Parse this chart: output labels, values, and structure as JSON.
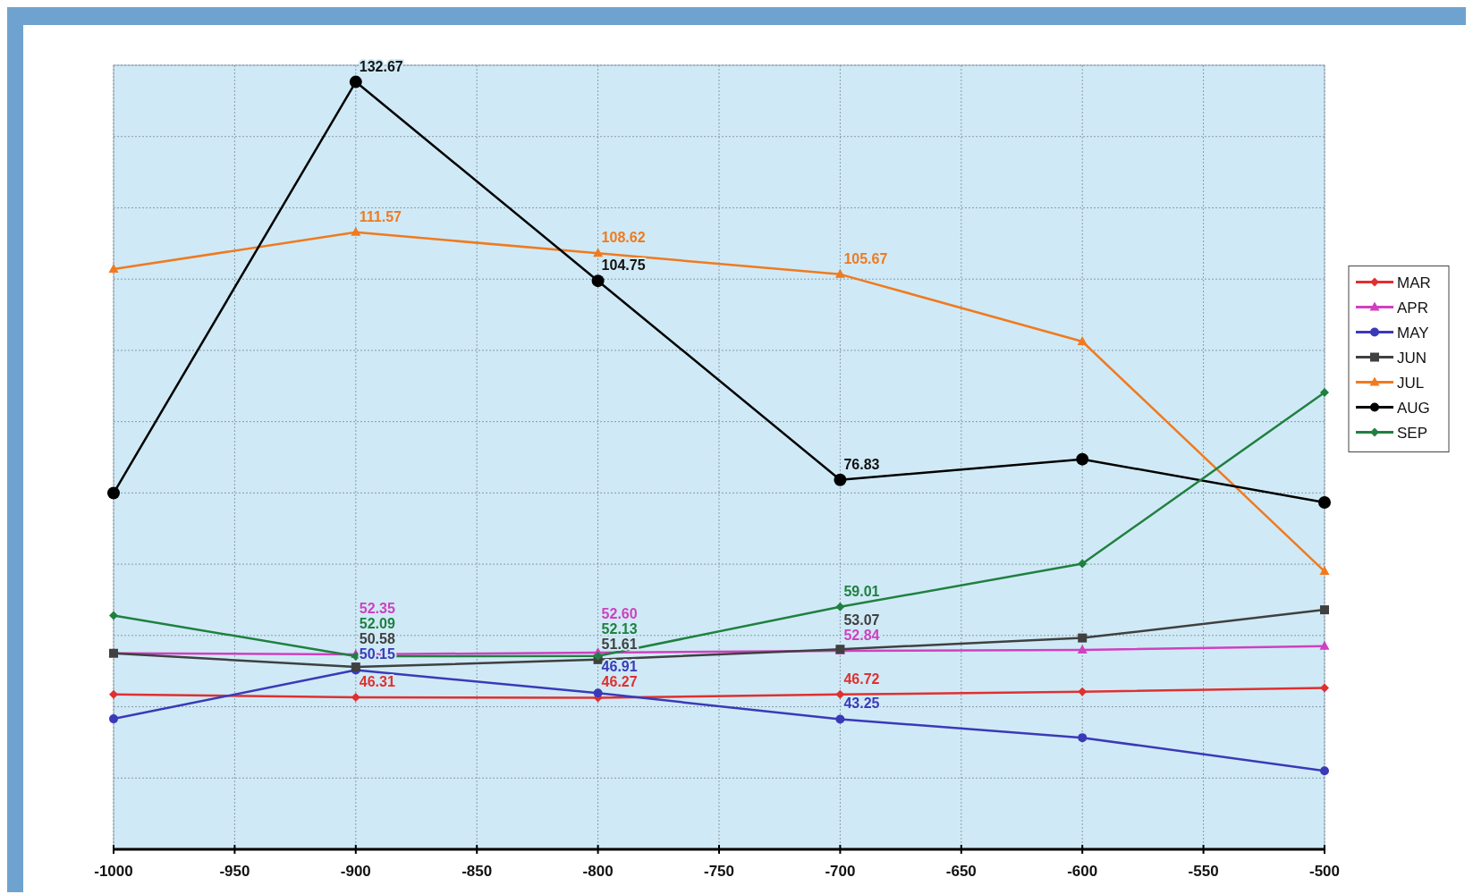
{
  "chart_data": {
    "type": "line",
    "x": [
      -1000,
      -900,
      -800,
      -700,
      -600,
      -500
    ],
    "xlim": [
      -1000,
      -500
    ],
    "xticks": [
      -1000,
      -950,
      -900,
      -850,
      -800,
      -750,
      -700,
      -650,
      -600,
      -550,
      -500
    ],
    "ylim": [
      25,
      135
    ],
    "yticks": [
      {
        "value": 25,
        "label": null
      },
      {
        "value": 35,
        "label": null
      },
      {
        "value": 45,
        "label": null
      },
      {
        "value": 55,
        "label": null
      },
      {
        "value": 65,
        "label": null
      },
      {
        "value": 75,
        "label": null
      },
      {
        "value": 85,
        "label": null
      },
      {
        "value": 95,
        "label": null
      },
      {
        "value": 105,
        "label": null
      },
      {
        "value": 115,
        "label": null
      },
      {
        "value": 125,
        "label": null
      },
      {
        "value": 135,
        "label": null
      }
    ],
    "grid": true,
    "legend": "right",
    "tick_labels": "x",
    "series": [
      {
        "name": "MAR",
        "color": "#e03030",
        "marker": "diamond",
        "values": [
          46.73,
          46.31,
          46.27,
          46.72,
          47.12,
          47.65
        ],
        "value_labels": [
          null,
          "46.31",
          "46.27",
          "46.72",
          null,
          null
        ]
      },
      {
        "name": "APR",
        "color": "#d040c0",
        "marker": "triangle",
        "values": [
          52.5,
          52.35,
          52.6,
          52.84,
          52.97,
          53.5
        ],
        "value_labels": [
          null,
          "52.35",
          "52.60",
          "52.84",
          null,
          null
        ]
      },
      {
        "name": "MAY",
        "color": "#3a3ab8",
        "marker": "circle",
        "values": [
          43.3,
          50.15,
          46.91,
          43.25,
          40.66,
          36.0
        ],
        "value_labels": [
          null,
          "50.15",
          "46.91",
          "43.25",
          null,
          null
        ]
      },
      {
        "name": "JUN",
        "color": "#404040",
        "marker": "square",
        "values": [
          52.5,
          50.58,
          51.61,
          53.07,
          54.65,
          58.6
        ],
        "value_labels": [
          null,
          "50.58",
          "51.61",
          "53.07",
          null,
          null
        ]
      },
      {
        "name": "JUL",
        "color": "#f07a20",
        "marker": "triangle",
        "values": [
          106.4,
          111.57,
          108.62,
          105.67,
          96.24,
          64.0
        ],
        "value_labels": [
          null,
          "111.57",
          "108.62",
          "105.67",
          null,
          null
        ]
      },
      {
        "name": "AUG",
        "color": "#000000",
        "marker": "circle",
        "values": [
          74.98,
          132.67,
          104.75,
          76.83,
          79.73,
          73.66
        ],
        "value_labels": [
          null,
          "132.67",
          "104.75",
          "76.83",
          null,
          null
        ]
      },
      {
        "name": "SEP",
        "color": "#208040",
        "marker": "diamond",
        "values": [
          57.8,
          52.09,
          52.13,
          59.01,
          65.08,
          89.1
        ],
        "value_labels": [
          null,
          "52.09",
          "52.13",
          "59.01",
          null,
          null
        ]
      }
    ]
  }
}
